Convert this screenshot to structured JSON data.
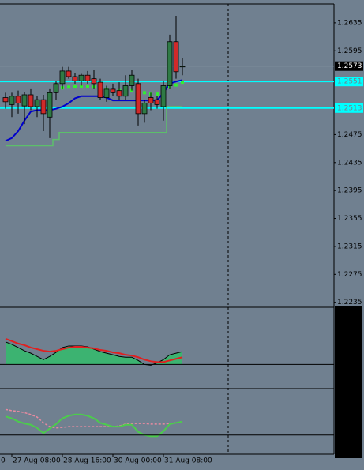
{
  "chart_data": [
    {
      "type": "candlestick",
      "x_edge_label": "0",
      "categories": [
        null,
        "27 Aug 08:00",
        null,
        null,
        null,
        null,
        null,
        null,
        null,
        "28 Aug 16:00",
        null,
        null,
        null,
        null,
        null,
        null,
        null,
        "30 Aug 00:00",
        null,
        null,
        null,
        null,
        null,
        null,
        null,
        "31 Aug 08:00",
        null,
        null,
        null
      ],
      "open": [
        1.2528,
        1.2518,
        1.253,
        1.2516,
        1.2532,
        1.2515,
        1.2525,
        1.25,
        1.2535,
        1.2548,
        1.2566,
        1.2558,
        1.2552,
        1.256,
        1.2555,
        1.255,
        1.2528,
        1.254,
        1.2538,
        1.253,
        1.2545,
        1.2548,
        1.2505,
        1.2528,
        1.2525,
        1.2515,
        1.2545,
        1.2608,
        1.2572
      ],
      "high": [
        1.2535,
        1.2535,
        1.2538,
        1.2536,
        1.254,
        1.253,
        1.2532,
        1.254,
        1.2552,
        1.2572,
        1.2572,
        1.2563,
        1.2562,
        1.2566,
        1.2568,
        1.2555,
        1.2545,
        1.2548,
        1.255,
        1.256,
        1.2568,
        1.2555,
        1.2525,
        1.2535,
        1.253,
        1.2552,
        1.2618,
        1.2645,
        1.2585
      ],
      "low": [
        1.2512,
        1.25,
        1.2505,
        1.249,
        1.251,
        1.25,
        1.248,
        1.247,
        1.2525,
        1.254,
        1.2555,
        1.2548,
        1.2545,
        1.2548,
        1.254,
        1.2525,
        1.2522,
        1.253,
        1.2525,
        1.2525,
        1.2538,
        1.2488,
        1.2492,
        1.251,
        1.2512,
        1.2495,
        1.254,
        1.2555,
        1.256
      ],
      "close": [
        1.2522,
        1.253,
        1.252,
        1.2532,
        1.2515,
        1.2525,
        1.2505,
        1.2535,
        1.2548,
        1.2566,
        1.2558,
        1.2552,
        1.256,
        1.2552,
        1.2548,
        1.2528,
        1.254,
        1.2535,
        1.253,
        1.2545,
        1.256,
        1.2505,
        1.252,
        1.252,
        1.2518,
        1.2545,
        1.2608,
        1.2565,
        1.2573
      ],
      "up_color": "#2f7a45",
      "down_color": "#d12a2a",
      "series": [
        {
          "style": "line",
          "color": "#0000cc",
          "values": [
            1.2466,
            1.247,
            1.248,
            1.2495,
            1.2508,
            1.251,
            1.251,
            1.251,
            1.2512,
            1.2515,
            1.252,
            1.2527,
            1.253,
            1.253,
            1.253,
            1.253,
            1.2528,
            1.2524,
            1.2524,
            1.2524,
            1.2524,
            1.2524,
            1.2524,
            1.2524,
            1.2524,
            1.2535,
            1.2548,
            1.2551,
            1.2553
          ]
        },
        {
          "style": "step",
          "color": "#5cbf6a",
          "values": [
            1.2459,
            1.2459,
            1.2459,
            1.2459,
            1.2459,
            1.2459,
            1.2459,
            1.2459,
            1.2468,
            1.2478,
            1.2478,
            1.2478,
            1.2478,
            1.2478,
            1.2478,
            1.2478,
            1.2478,
            1.2478,
            1.2478,
            1.2478,
            1.2478,
            1.2478,
            1.2478,
            1.2478,
            1.2478,
            1.2478,
            1.2515,
            1.2515,
            1.2515
          ]
        },
        {
          "style": "dots",
          "color": "#33ee33",
          "values": [
            null,
            null,
            null,
            null,
            null,
            null,
            null,
            null,
            1.254,
            1.2542,
            1.2543,
            1.2544,
            1.2544,
            1.2544,
            1.2543,
            1.254,
            1.254,
            1.2538,
            1.2538,
            1.2538,
            1.2538,
            1.2536,
            1.2535,
            1.2533,
            1.2533,
            1.254,
            1.2543,
            1.2546,
            1.255
          ]
        }
      ],
      "levels": [
        1.2551,
        1.2513
      ],
      "level_color": "#00ffff",
      "last_price": 1.2573,
      "ylim": [
        1.2229,
        1.2662
      ],
      "yticks": [
        1.2635,
        1.2595,
        1.2475,
        1.2435,
        1.2395,
        1.2355,
        1.2315,
        1.2275,
        1.2235
      ]
    },
    {
      "type": "area",
      "series": [
        {
          "style": "area",
          "color": "#3cb371",
          "values": [
            28,
            25,
            21,
            17,
            14,
            10,
            6,
            10,
            15,
            21,
            23,
            23,
            23,
            22,
            19,
            16,
            14,
            12,
            10,
            9,
            9,
            5,
            0,
            -1,
            2,
            6,
            12,
            14,
            16
          ]
        },
        {
          "style": "line",
          "color": "#e02020",
          "values": [
            32,
            29,
            26,
            24,
            21,
            19,
            17,
            16,
            17,
            19,
            21,
            22,
            22,
            21,
            20,
            18,
            17,
            15,
            14,
            12,
            11,
            9,
            6,
            4,
            3,
            3,
            5,
            7,
            9
          ]
        }
      ],
      "levels": [
        0
      ],
      "ylim": [
        -30,
        70
      ]
    },
    {
      "type": "line",
      "series": [
        {
          "style": "dashed",
          "color": "#e88aa0",
          "values": [
            70,
            68,
            67,
            65,
            62,
            58,
            49,
            43,
            41,
            42,
            43,
            43,
            43,
            43,
            43,
            43,
            43,
            43,
            44,
            47,
            48,
            48,
            48,
            47,
            47,
            47,
            48,
            49,
            49
          ]
        },
        {
          "style": "line",
          "color": "#4ccc4c",
          "values": [
            59,
            56,
            51,
            48,
            46,
            41,
            33,
            40,
            47,
            56,
            60,
            62,
            62,
            60,
            56,
            49,
            46,
            43,
            43,
            46,
            46,
            35,
            30,
            28,
            28,
            36,
            47,
            49,
            51
          ]
        }
      ],
      "levels": [
        30
      ],
      "ylim": [
        0,
        100
      ]
    }
  ]
}
